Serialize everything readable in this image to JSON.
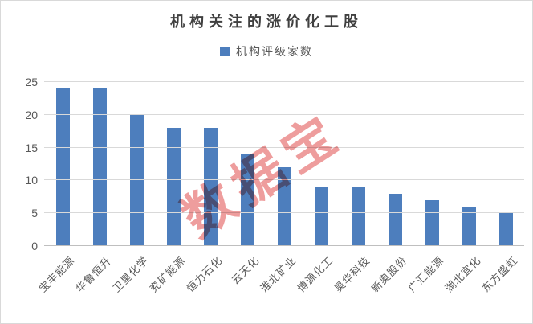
{
  "chart_data": {
    "type": "bar",
    "title": "机构关注的涨价化工股",
    "categories": [
      "宝丰能源",
      "华鲁恒升",
      "卫星化学",
      "兖矿能源",
      "恒力石化",
      "云天化",
      "淮北矿业",
      "博源化工",
      "昊华科技",
      "新奥股份",
      "广汇能源",
      "湖北宜化",
      "东方盛虹"
    ],
    "series": [
      {
        "name": "机构评级家数",
        "values": [
          24,
          24,
          20,
          18,
          18,
          14,
          12,
          9,
          9,
          8,
          7,
          6,
          5
        ]
      }
    ],
    "xlabel": "",
    "ylabel": "",
    "ylim": [
      0,
      25
    ],
    "yticks": [
      0,
      5,
      10,
      15,
      20,
      25
    ],
    "grid": true,
    "legend_position": "top-center",
    "watermark": "数据宝"
  },
  "colors": {
    "bar": "#4d7ebd",
    "gridline": "#d9d9d9",
    "axis_line": "#bfbfbf",
    "title_text": "#404040",
    "tick_text": "#595959",
    "watermark": "rgba(224,77,77,0.55)",
    "border": "#d9d9d9",
    "background": "#ffffff"
  }
}
